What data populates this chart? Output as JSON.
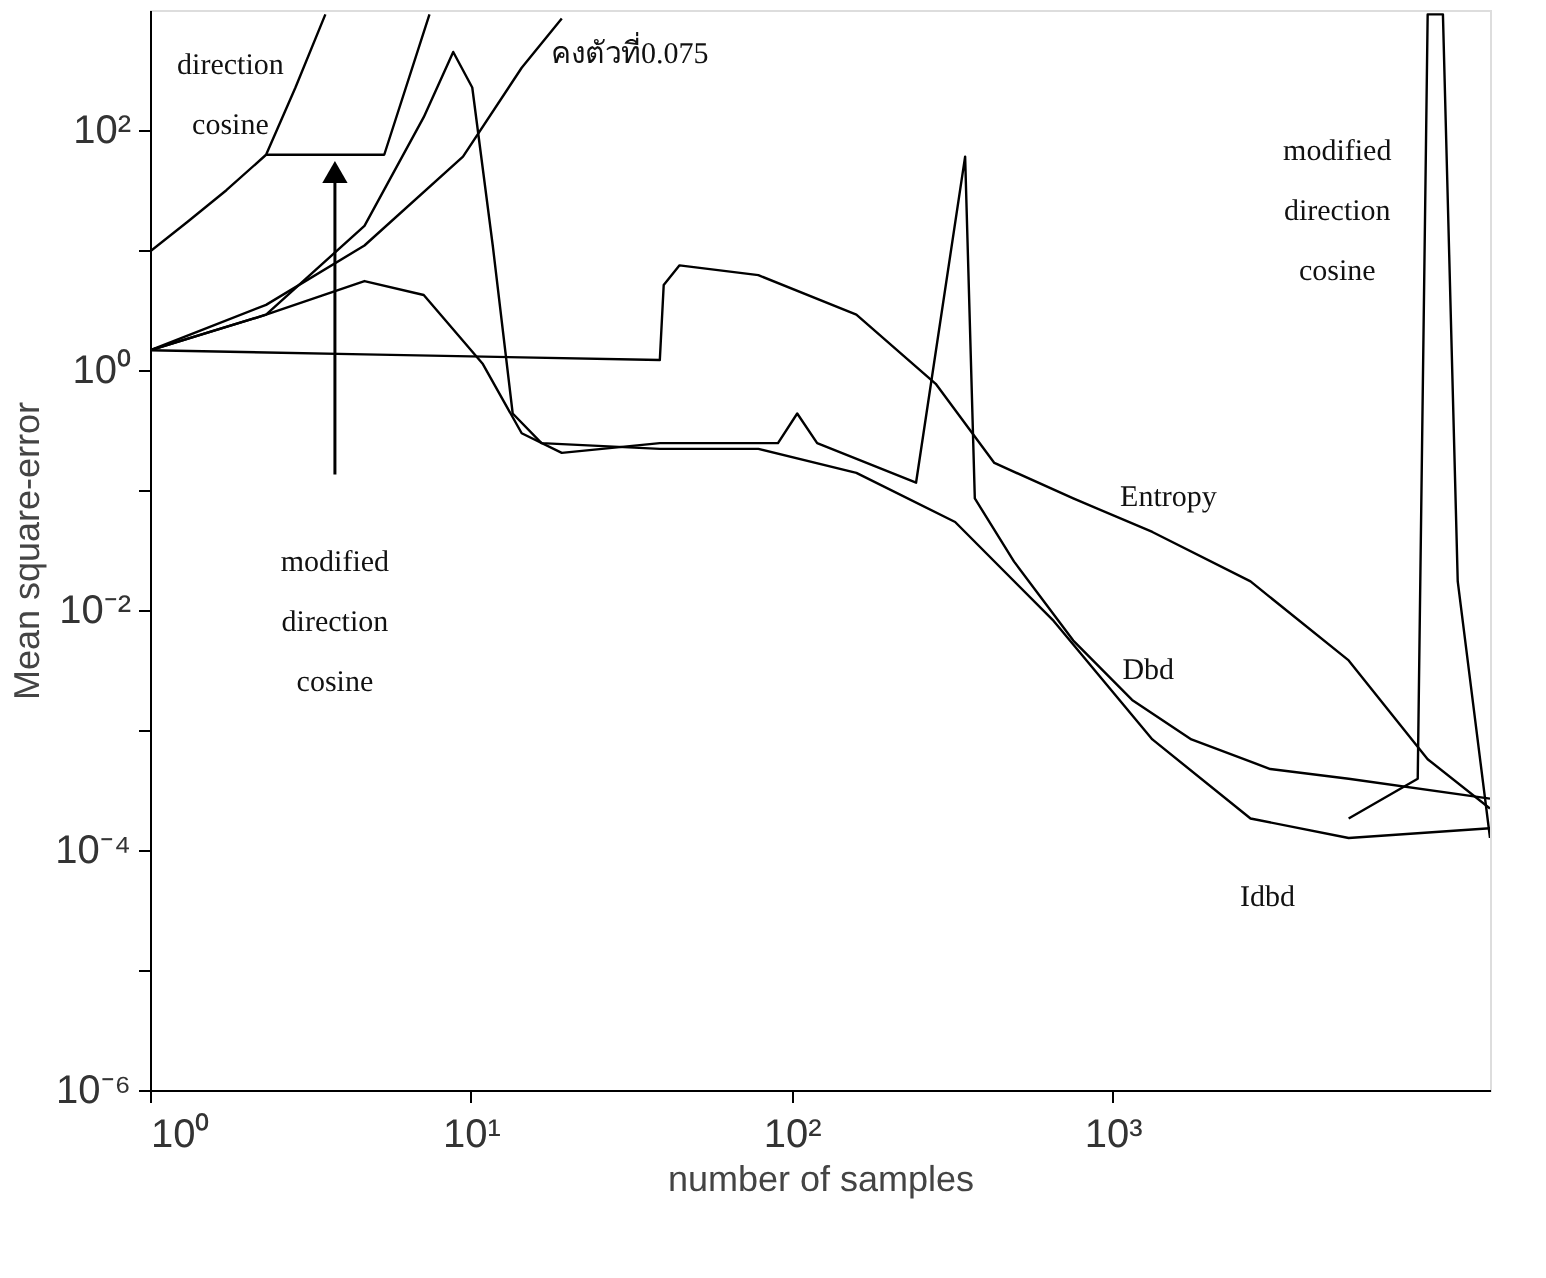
{
  "chart_data": {
    "type": "line",
    "xlabel": "number of samples",
    "ylabel": "Mean square-error",
    "log": "xy",
    "grid": false,
    "legend": false,
    "xlim": [
      1,
      15000
    ],
    "ylim": [
      1e-06,
      1000
    ],
    "xticks": [
      {
        "value": 1,
        "label": "10⁰"
      },
      {
        "value": 10,
        "label": "10¹"
      },
      {
        "value": 100,
        "label": "10²"
      },
      {
        "value": 1000,
        "label": "10³"
      }
    ],
    "yticks": [
      {
        "value": 1e-06,
        "label": "10⁻⁶"
      },
      {
        "value": 1e-05,
        "label": null
      },
      {
        "value": 0.0001,
        "label": "10⁻⁴"
      },
      {
        "value": 0.001,
        "label": null
      },
      {
        "value": 0.01,
        "label": "10⁻²"
      },
      {
        "value": 0.1,
        "label": null
      },
      {
        "value": 1,
        "label": "10⁰"
      },
      {
        "value": 10,
        "label": null
      },
      {
        "value": 100,
        "label": "10²"
      }
    ],
    "series": [
      {
        "color": "#000000",
        "x": [
          1,
          1.31,
          1.73,
          2.3,
          2.84,
          3.52
        ],
        "values": [
          9.72,
          17.2,
          31.5,
          62.2,
          226,
          919
        ]
      },
      {
        "color": "#000000",
        "x": [
          2.3,
          5.37,
          7.43
        ],
        "values": [
          62.2,
          62.2,
          919
        ]
      },
      {
        "color": "#000000",
        "x": [
          1,
          2.3,
          4.66,
          7.13,
          8.81,
          10.1,
          11.7,
          13.5,
          16.6,
          38.8,
          78.7,
          159,
          323,
          655,
          1330,
          2690,
          5440,
          15000
        ],
        "values": [
          1.46,
          2.89,
          15.9,
          128,
          447,
          226,
          10.9,
          0.434,
          0.246,
          0.22,
          0.22,
          0.139,
          0.0541,
          0.00811,
          0.000835,
          0.000183,
          0.000126,
          0.000152
        ]
      },
      {
        "color": "#000000",
        "x": [
          1,
          2.3,
          4.66,
          7.13,
          10.9,
          14.4,
          19.2,
          38.8,
          90.6,
          104,
          120,
          244,
          347,
          372,
          493,
          754,
          1150,
          1760,
          3100,
          5440,
          15000
        ],
        "values": [
          1.46,
          2.89,
          5.51,
          4.22,
          1.12,
          0.297,
          0.204,
          0.246,
          0.246,
          0.434,
          0.246,
          0.115,
          60,
          0.0851,
          0.0253,
          0.00556,
          0.00178,
          0.000835,
          0.000473,
          0.000392,
          0.000268
        ]
      },
      {
        "color": "#000000",
        "x": [
          1,
          2.3,
          4.66,
          9.45,
          14.4,
          19.2
        ],
        "values": [
          1.46,
          3.49,
          10.9,
          60,
          330,
          851
        ]
      },
      {
        "color": "#000000",
        "x": [
          1,
          4.66,
          38.8,
          39.9,
          44.7,
          78.7,
          159,
          281,
          428,
          754,
          1330,
          2690,
          5440,
          9590,
          15000
        ],
        "values": [
          1.46,
          1.35,
          1.21,
          5.11,
          7.45,
          6.17,
          2.89,
          0.767,
          0.168,
          0.0851,
          0.0447,
          0.0173,
          0.0038,
          0.000571,
          0.000222
        ]
      },
      {
        "color": "#000000",
        "x": [
          5440,
          8930,
          9590,
          10700,
          11900,
          15000
        ],
        "values": [
          0.000183,
          0.000392,
          919,
          919,
          0.0173,
          0.000126
        ]
      }
    ],
    "annotations": [
      "direction cosine",
      "modified direction cosine",
      "คงตัวที่0.075",
      "modified direction cosine",
      "Entropy",
      "Dbd",
      "Idbd"
    ]
  }
}
